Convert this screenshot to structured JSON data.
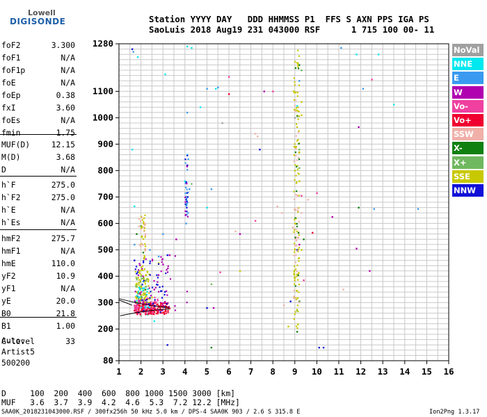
{
  "logo": {
    "line1": "Lowell",
    "line2": "DIGISONDE"
  },
  "header": {
    "line1": "Station YYYY DAY   DDD HHMMSS P1  FFS S AXN PPS IGA PS",
    "line2": "SaoLuis 2018 Aug19 231 043000 RSF      1 715 100 00- 11"
  },
  "params": [
    {
      "label": "foF2",
      "value": "3.300"
    },
    {
      "label": "foF1",
      "value": "N/A"
    },
    {
      "label": "foF1p",
      "value": "N/A"
    },
    {
      "label": "foE",
      "value": "N/A"
    },
    {
      "label": "foEp",
      "value": "0.38"
    },
    {
      "label": "fxI",
      "value": "3.60"
    },
    {
      "label": "foEs",
      "value": "N/A"
    },
    {
      "label": "fmin",
      "value": "1.75"
    },
    {
      "label": "MUF(D)",
      "value": "12.15"
    },
    {
      "label": "M(D)",
      "value": "3.68"
    },
    {
      "label": "D",
      "value": "N/A"
    },
    {
      "label": "h`F",
      "value": "275.0"
    },
    {
      "label": "h`F2",
      "value": "275.0"
    },
    {
      "label": "h`E",
      "value": "N/A"
    },
    {
      "label": "h`Es",
      "value": "N/A"
    },
    {
      "label": "hmF2",
      "value": "275.7"
    },
    {
      "label": "hmF1",
      "value": "N/A"
    },
    {
      "label": "hmE",
      "value": "110.0"
    },
    {
      "label": "yF2",
      "value": "10.9"
    },
    {
      "label": "yF1",
      "value": "N/A"
    },
    {
      "label": "yE",
      "value": "20.0"
    },
    {
      "label": "B0",
      "value": "21.8"
    },
    {
      "label": "B1",
      "value": "1.00"
    },
    {
      "label": "C-level",
      "value": "33"
    }
  ],
  "auto": {
    "line1": "Auto:",
    "line2": "Artist5",
    "line3": "500200"
  },
  "legend": [
    {
      "label": "NoVal",
      "color": "#a0a0a0"
    },
    {
      "label": "NNE",
      "color": "#00e8f0"
    },
    {
      "label": "E",
      "color": "#3a9af0"
    },
    {
      "label": "W",
      "color": "#b000b0"
    },
    {
      "label": "Vo-",
      "color": "#f040a0"
    },
    {
      "label": "Vo+",
      "color": "#f00030"
    },
    {
      "label": "SSW",
      "color": "#f0b0a8"
    },
    {
      "label": "X-",
      "color": "#108010"
    },
    {
      "label": "X+",
      "color": "#70b860"
    },
    {
      "label": "SSE",
      "color": "#c8c800"
    },
    {
      "label": "NNW",
      "color": "#1010d8"
    }
  ],
  "bottom": {
    "d_row": "D     100  200  400  600  800 1000 1500 3000 [km]",
    "muf_row": "MUF   3.6  3.7  3.9  4.2  4.6  5.3  7.2 12.2 [MHz]"
  },
  "footer": {
    "left": "SAA0K_2018231043000.RSF / 300fx256h 50 kHz 5.0 km / DPS-4 SAA0K 903 / 2.6 S 315.8 E",
    "right": "Ion2Png 1.3.17"
  },
  "chart_data": {
    "type": "scatter",
    "xlim": [
      1,
      16
    ],
    "ylim": [
      80,
      1280
    ],
    "x_ticks": [
      1,
      2,
      3,
      4,
      5,
      6,
      7,
      8,
      9,
      10,
      11,
      12,
      13,
      14,
      15,
      16
    ],
    "y_ticks": [
      80,
      200,
      300,
      400,
      500,
      600,
      700,
      800,
      900,
      1000,
      1100,
      1280
    ],
    "grid": true,
    "series": [
      {
        "name": "NNE",
        "color": "#00e8f0",
        "points": [
          [
            1.6,
            880
          ],
          [
            1.7,
            665
          ],
          [
            2.3,
            255
          ],
          [
            2.6,
            230
          ],
          [
            4.0,
            760
          ],
          [
            4.1,
            1270
          ],
          [
            4.3,
            1265
          ],
          [
            4.7,
            1040
          ],
          [
            5.4,
            1110
          ],
          [
            1.85,
            1230
          ],
          [
            9.1,
            1045
          ],
          [
            11.8,
            1240
          ],
          [
            12.8,
            1240
          ],
          [
            13.5,
            1050
          ],
          [
            4.1,
            860
          ],
          [
            5.0,
            660
          ],
          [
            3.1,
            1165
          ]
        ]
      },
      {
        "name": "E",
        "color": "#3a9af0",
        "points": [
          [
            1.65,
            1250
          ],
          [
            1.8,
            410
          ],
          [
            2.4,
            500
          ],
          [
            2.8,
            475
          ],
          [
            3.0,
            560
          ],
          [
            4.05,
            600
          ],
          [
            4.2,
            730
          ],
          [
            5.0,
            1110
          ],
          [
            5.5,
            1115
          ],
          [
            1.7,
            520
          ],
          [
            2.1,
            380
          ],
          [
            9.2,
            1140
          ],
          [
            11.1,
            1265
          ],
          [
            12.1,
            1110
          ],
          [
            12.6,
            655
          ],
          [
            14.6,
            655
          ],
          [
            5.2,
            730
          ],
          [
            4.1,
            1020
          ]
        ]
      },
      {
        "name": "W",
        "color": "#b000b0",
        "points": [
          [
            1.7,
            460
          ],
          [
            1.9,
            300
          ],
          [
            2.0,
            340
          ],
          [
            2.2,
            290
          ],
          [
            2.6,
            350
          ],
          [
            3.0,
            445
          ],
          [
            3.3,
            480
          ],
          [
            4.1,
            820
          ],
          [
            5.3,
            280
          ],
          [
            6.5,
            560
          ],
          [
            7.6,
            1100
          ],
          [
            9.2,
            520
          ],
          [
            10.7,
            625
          ],
          [
            11.8,
            505
          ],
          [
            12.4,
            420
          ],
          [
            11.9,
            965
          ],
          [
            3.6,
            540
          ],
          [
            2.9,
            300
          ]
        ]
      },
      {
        "name": "Vo-",
        "color": "#f040a0",
        "points": [
          [
            1.8,
            280
          ],
          [
            2.0,
            280
          ],
          [
            2.3,
            275
          ],
          [
            2.6,
            265
          ],
          [
            1.9,
            320
          ],
          [
            2.1,
            300
          ],
          [
            5.6,
            415
          ],
          [
            6.0,
            1155
          ],
          [
            7.2,
            610
          ],
          [
            8.0,
            1100
          ],
          [
            9.4,
            385
          ],
          [
            9.3,
            705
          ],
          [
            10.0,
            715
          ],
          [
            12.5,
            1145
          ],
          [
            2.2,
            270
          ],
          [
            1.9,
            262
          ],
          [
            2.4,
            290
          ]
        ]
      },
      {
        "name": "Vo+",
        "color": "#f00030",
        "points": [
          [
            1.7,
            270
          ],
          [
            1.8,
            265
          ],
          [
            1.9,
            280
          ],
          [
            2.0,
            285
          ],
          [
            2.1,
            275
          ],
          [
            2.2,
            268
          ],
          [
            2.3,
            282
          ],
          [
            2.5,
            278
          ],
          [
            2.7,
            270
          ],
          [
            2.9,
            272
          ],
          [
            3.1,
            268
          ],
          [
            3.3,
            278
          ],
          [
            1.75,
            300
          ],
          [
            2.05,
            310
          ],
          [
            2.4,
            300
          ],
          [
            6.0,
            1090
          ],
          [
            9.8,
            565
          ]
        ]
      },
      {
        "name": "SSW",
        "color": "#f0b0a8",
        "points": [
          [
            2.2,
            560
          ],
          [
            2.0,
            580
          ],
          [
            7.3,
            930
          ],
          [
            8.2,
            665
          ],
          [
            8.5,
            290
          ],
          [
            8.9,
            585
          ],
          [
            9.3,
            640
          ],
          [
            9.6,
            690
          ],
          [
            11.2,
            350
          ],
          [
            6.3,
            570
          ],
          [
            7.2,
            940
          ],
          [
            8.4,
            640
          ]
        ]
      },
      {
        "name": "X-",
        "color": "#108010",
        "points": [
          [
            1.8,
            560
          ],
          [
            2.0,
            590
          ],
          [
            2.1,
            490
          ],
          [
            2.2,
            350
          ],
          [
            9.2,
            305
          ],
          [
            9.4,
            540
          ],
          [
            11.9,
            660
          ],
          [
            9.1,
            190
          ],
          [
            5.2,
            130
          ],
          [
            9.2,
            1200
          ]
        ]
      },
      {
        "name": "X+",
        "color": "#70b860",
        "points": [
          [
            1.8,
            370
          ],
          [
            2.0,
            400
          ],
          [
            2.2,
            330
          ],
          [
            2.4,
            315
          ],
          [
            4.3,
            750
          ],
          [
            9.2,
            880
          ],
          [
            9.1,
            270
          ],
          [
            9.3,
            1180
          ],
          [
            5.2,
            370
          ],
          [
            9.2,
            810
          ]
        ]
      },
      {
        "name": "SSE",
        "color": "#c8c800",
        "points": [
          [
            1.8,
            340
          ],
          [
            1.9,
            375
          ],
          [
            2.0,
            360
          ],
          [
            2.1,
            345
          ],
          [
            2.3,
            390
          ],
          [
            2.5,
            320
          ],
          [
            2.8,
            450
          ],
          [
            9.0,
            600
          ],
          [
            9.1,
            570
          ],
          [
            9.2,
            760
          ],
          [
            9.0,
            800
          ],
          [
            9.3,
            500
          ],
          [
            8.7,
            210
          ],
          [
            9.3,
            1010
          ],
          [
            9.3,
            1060
          ],
          [
            6.5,
            420
          ],
          [
            9.2,
            870
          ]
        ]
      },
      {
        "name": "NNW",
        "color": "#1010d8",
        "points": [
          [
            1.7,
            460
          ],
          [
            1.8,
            410
          ],
          [
            1.9,
            290
          ],
          [
            2.2,
            310
          ],
          [
            2.6,
            285
          ],
          [
            3.2,
            480
          ],
          [
            4.1,
            820
          ],
          [
            5.0,
            280
          ],
          [
            7.4,
            880
          ],
          [
            8.8,
            305
          ],
          [
            9.1,
            500
          ],
          [
            10.1,
            130
          ],
          [
            10.3,
            130
          ],
          [
            3.2,
            140
          ],
          [
            1.6,
            1260
          ]
        ]
      },
      {
        "name": "NoVal",
        "color": "#a0a0a0",
        "points": [
          [
            2.0,
            250
          ],
          [
            9.0,
            1000
          ],
          [
            5.7,
            980
          ]
        ]
      }
    ]
  }
}
